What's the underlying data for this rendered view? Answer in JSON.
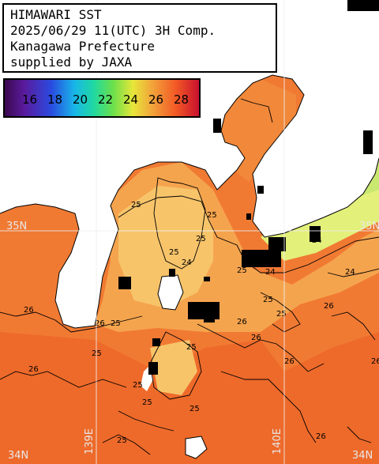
{
  "title": {
    "line1": "HIMAWARI SST",
    "line2": "2025/06/29 11(UTC) 3H Comp.",
    "line3": "Kanagawa Prefecture",
    "line4": "supplied by JAXA"
  },
  "legend": {
    "ticks": [
      "16",
      "18",
      "20",
      "22",
      "24",
      "26",
      "28"
    ],
    "colors": [
      "#3b0a4f",
      "#5a1a9c",
      "#2a4be0",
      "#18b7e8",
      "#21d9a0",
      "#6ee04a",
      "#e7e63a",
      "#f2a33a",
      "#f25a26",
      "#c8102e"
    ]
  },
  "grid": {
    "lat_labels": [
      "35N",
      "35N",
      "34N",
      "34N"
    ],
    "lon_labels": [
      "139E",
      "140E"
    ]
  },
  "contours": {
    "labels": [
      "25",
      "25",
      "24",
      "24",
      "25",
      "24",
      "26",
      "26",
      "26",
      "25",
      "25",
      "25",
      "25",
      "25",
      "25",
      "26",
      "25",
      "25",
      "26",
      "25",
      "26",
      "26",
      "26",
      "25",
      "26",
      "25",
      "24"
    ]
  },
  "colors": {
    "land": "#ffffff",
    "sea_warm": "#f17a33",
    "sea_mid": "#f5a44e",
    "sea_cool": "#f8cf6a",
    "sea_cold": "#e3f07a",
    "no_data": "#000000",
    "grid": "#f0f0f0"
  }
}
